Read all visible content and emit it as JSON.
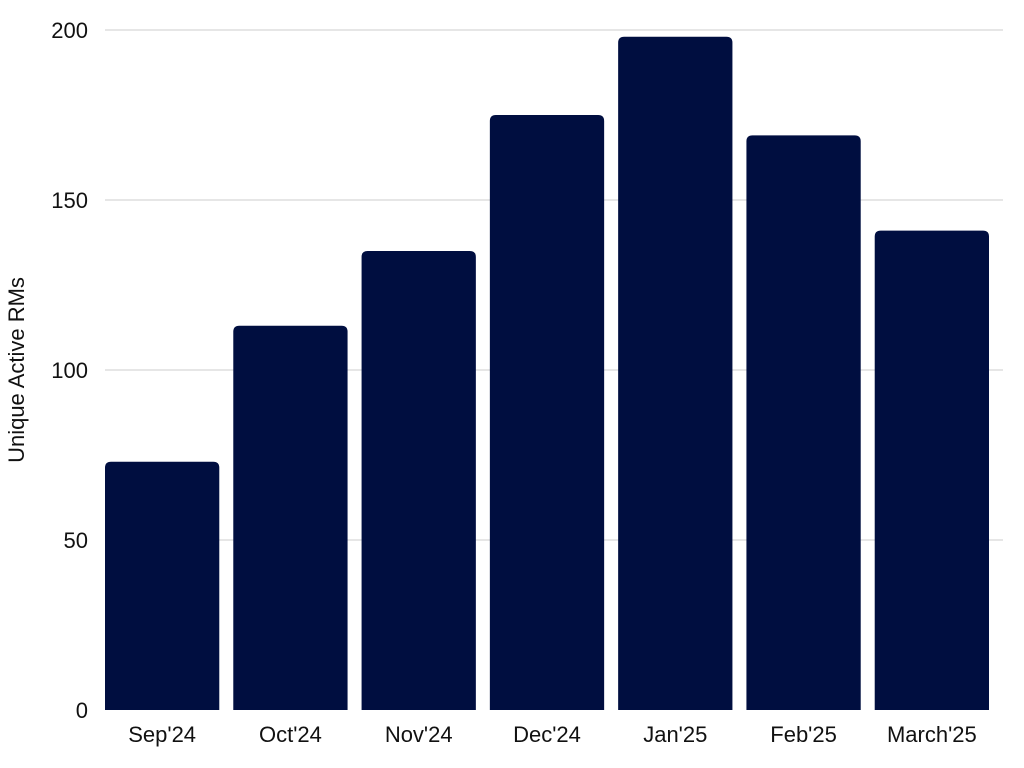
{
  "chart_data": {
    "type": "bar",
    "title": "",
    "xlabel": "",
    "ylabel": "Unique Active RMs",
    "categories": [
      "Sep'24",
      "Oct'24",
      "Nov'24",
      "Dec'24",
      "Jan'25",
      "Feb'25",
      "March'25"
    ],
    "values": [
      73,
      113,
      135,
      175,
      198,
      169,
      141
    ],
    "ylim": [
      0,
      200
    ],
    "yticks": [
      0,
      50,
      100,
      150,
      200
    ],
    "grid": true,
    "legend": "none",
    "bar_color": "#000e40",
    "grid_color": "#cccccc"
  }
}
